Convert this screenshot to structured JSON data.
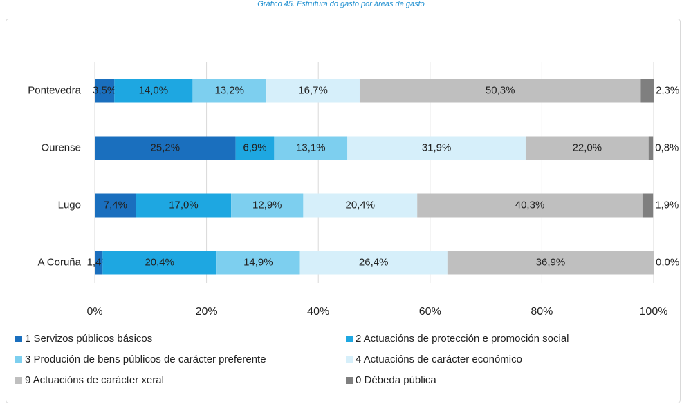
{
  "chart_data": {
    "type": "stacked-bar-horizontal",
    "title": "Gráfico 45. Estrutura do gasto por áreas de gasto",
    "categories": [
      "A Coruña",
      "Lugo",
      "Ourense",
      "Pontevedra"
    ],
    "series": [
      {
        "name": "1 Servizos públicos básicos",
        "color": "#1a6fbe",
        "label_color": "#ffffff",
        "values": [
          1.4,
          7.4,
          25.2,
          3.5
        ],
        "value_labels": [
          "1,4%",
          "7,4%",
          "25,2%",
          "3,5%"
        ]
      },
      {
        "name": "2 Actuacións de protección e promoción social",
        "color": "#1ea7e1",
        "label_color": "#ffffff",
        "values": [
          20.4,
          17.0,
          6.9,
          14.0
        ],
        "value_labels": [
          "20,4%",
          "17,0%",
          "6,9%",
          "14,0%"
        ]
      },
      {
        "name": "3 Produción de bens públicos de carácter preferente",
        "color": "#7dcfef",
        "label_color": "#404040",
        "values": [
          14.9,
          12.9,
          13.1,
          13.2
        ],
        "value_labels": [
          "14,9%",
          "12,9%",
          "13,1%",
          "13,2%"
        ]
      },
      {
        "name": "4 Actuacións de carácter económico",
        "color": "#d6effa",
        "label_color": "#000000",
        "values": [
          26.4,
          20.4,
          31.9,
          16.7
        ],
        "value_labels": [
          "26,4%",
          "20,4%",
          "31,9%",
          "16,7%"
        ]
      },
      {
        "name": "9 Actuacións de carácter xeral",
        "color": "#bfbfbf",
        "label_color": "#404040",
        "values": [
          36.9,
          40.3,
          22.0,
          50.3
        ],
        "value_labels": [
          "36,9%",
          "40,3%",
          "22,0%",
          "50,3%"
        ]
      },
      {
        "name": "0 Débeda pública",
        "color": "#7f7f7f",
        "label_color": "#404040",
        "values": [
          0.0,
          1.9,
          0.8,
          2.3
        ],
        "value_labels": [
          "0,0%",
          "1,9%",
          "0,8%",
          "2,3%"
        ]
      }
    ],
    "xlim": [
      0,
      100
    ],
    "xticks": [
      {
        "value": 0,
        "label": "0%"
      },
      {
        "value": 20,
        "label": "20%"
      },
      {
        "value": 40,
        "label": "40%"
      },
      {
        "value": 60,
        "label": "60%"
      },
      {
        "value": 80,
        "label": "80%"
      },
      {
        "value": 100,
        "label": "100%"
      }
    ],
    "grid": true
  }
}
